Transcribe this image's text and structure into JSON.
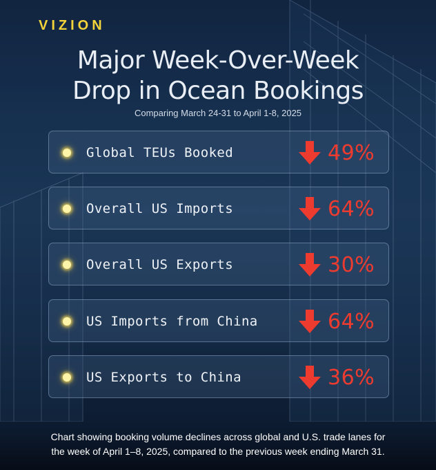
{
  "brand": {
    "logo_text": "VIZION"
  },
  "header": {
    "title_line1": "Major Week-Over-Week",
    "title_line2": "Drop in Ocean Bookings",
    "subtitle": "Comparing March 24-31 to April 1-8, 2025"
  },
  "colors": {
    "logo": "#f2d43a",
    "decline_red": "#ee3b2f",
    "bullet_yellow": "#fff4a8"
  },
  "icons": {
    "bullet": "glowing-dot-icon",
    "trend": "down-arrow-icon"
  },
  "chart_data": {
    "type": "table",
    "title": "Major Week-Over-Week Drop in Ocean Bookings",
    "subtitle": "Comparing March 24-31 to April 1-8, 2025",
    "categories": [
      "Global TEUs Booked",
      "Overall US Imports",
      "Overall US Exports",
      "US Imports from China",
      "US Exports to China"
    ],
    "values": [
      49,
      64,
      30,
      64,
      36
    ],
    "labels": [
      "49%",
      "64%",
      "30%",
      "64%",
      "36%"
    ],
    "direction": "down"
  },
  "footer": {
    "caption_line1": "Chart showing booking volume declines across global and U.S. trade lanes for",
    "caption_line2": "the week of April 1–8, 2025, compared to the previous week ending March 31."
  }
}
